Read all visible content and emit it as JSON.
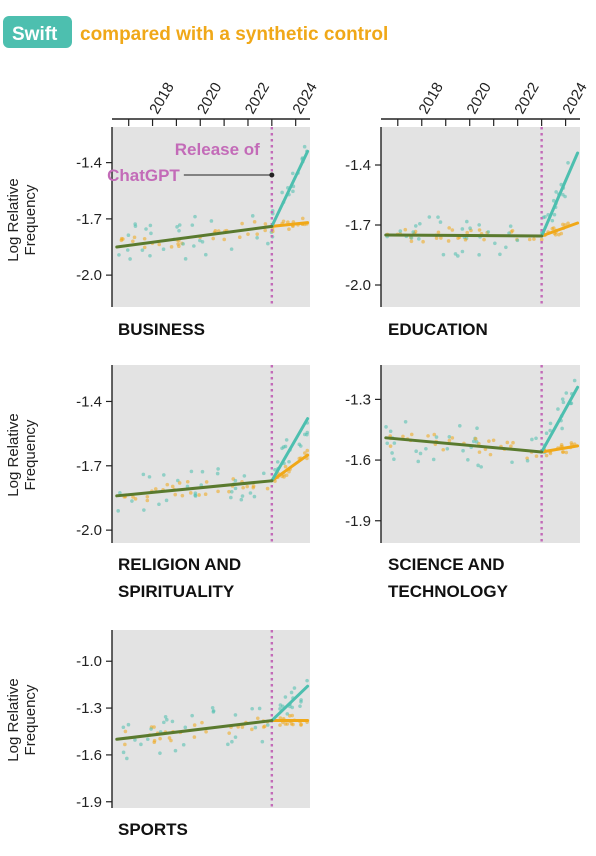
{
  "header": {
    "chip_label": "Swift",
    "rest_label": "compared with a synthetic control"
  },
  "colors": {
    "swift": "#4dbfaf",
    "control": "#f0a818",
    "pre_trend": "#5a7a2e",
    "release_line": "#c36bb8",
    "panel_bg": "#e3e3e3",
    "chip_bg": "#4dbfaf"
  },
  "y_axis_label_lines": [
    "Log Relative",
    "Frequency"
  ],
  "annotation": {
    "lines": [
      "Release of",
      "ChatGPT"
    ],
    "year": 2023.0
  },
  "chart_data": [
    {
      "type": "line",
      "title_lines": [
        "BUSINESS"
      ],
      "x_range": [
        2016.3,
        2024.6
      ],
      "x_ticks": [
        "2018",
        "2020",
        "2022",
        "2024"
      ],
      "ylim": [
        -2.17,
        -1.21
      ],
      "y_ticks": [
        "-1.4",
        "-1.7",
        "-2.0"
      ],
      "show_x_ticks": true,
      "show_annotation": true,
      "pre_trend": {
        "x": [
          2016.5,
          2023.0
        ],
        "y": [
          -1.85,
          -1.74
        ]
      },
      "swift_post": {
        "x": [
          2023.0,
          2024.5
        ],
        "y": [
          -1.74,
          -1.34
        ]
      },
      "control_post": {
        "x": [
          2023.0,
          2024.5
        ],
        "y": [
          -1.74,
          -1.72
        ]
      }
    },
    {
      "type": "line",
      "title_lines": [
        "EDUCATION"
      ],
      "x_range": [
        2016.3,
        2024.6
      ],
      "x_ticks": [
        "2018",
        "2020",
        "2022",
        "2024"
      ],
      "ylim": [
        -2.11,
        -1.21
      ],
      "y_ticks": [
        "-1.4",
        "-1.7",
        "-2.0"
      ],
      "show_x_ticks": true,
      "show_annotation": false,
      "pre_trend": {
        "x": [
          2016.5,
          2023.0
        ],
        "y": [
          -1.75,
          -1.755
        ]
      },
      "swift_post": {
        "x": [
          2023.0,
          2024.5
        ],
        "y": [
          -1.755,
          -1.34
        ]
      },
      "control_post": {
        "x": [
          2023.0,
          2024.5
        ],
        "y": [
          -1.755,
          -1.69
        ]
      }
    },
    {
      "type": "line",
      "title_lines": [
        "RELIGION AND",
        "SPIRITUALITY"
      ],
      "x_range": [
        2016.3,
        2024.6
      ],
      "x_ticks": [],
      "ylim": [
        -2.06,
        -1.23
      ],
      "y_ticks": [
        "-1.4",
        "-1.7",
        "-2.0"
      ],
      "show_x_ticks": false,
      "show_annotation": false,
      "pre_trend": {
        "x": [
          2016.5,
          2023.0
        ],
        "y": [
          -1.84,
          -1.77
        ]
      },
      "swift_post": {
        "x": [
          2023.0,
          2024.5
        ],
        "y": [
          -1.77,
          -1.48
        ]
      },
      "control_post": {
        "x": [
          2023.0,
          2024.5
        ],
        "y": [
          -1.77,
          -1.65
        ]
      }
    },
    {
      "type": "line",
      "title_lines": [
        "SCIENCE AND",
        "TECHNOLOGY"
      ],
      "x_range": [
        2016.3,
        2024.6
      ],
      "x_ticks": [],
      "ylim": [
        -2.01,
        -1.13
      ],
      "y_ticks": [
        "-1.3",
        "-1.6",
        "-1.9"
      ],
      "show_x_ticks": false,
      "show_annotation": false,
      "pre_trend": {
        "x": [
          2016.5,
          2023.0
        ],
        "y": [
          -1.49,
          -1.56
        ]
      },
      "swift_post": {
        "x": [
          2023.0,
          2024.5
        ],
        "y": [
          -1.56,
          -1.24
        ]
      },
      "control_post": {
        "x": [
          2023.0,
          2024.5
        ],
        "y": [
          -1.56,
          -1.53
        ]
      }
    },
    {
      "type": "line",
      "title_lines": [
        "SPORTS"
      ],
      "x_range": [
        2016.3,
        2024.6
      ],
      "x_ticks": [],
      "ylim": [
        -1.94,
        -0.8
      ],
      "y_ticks": [
        "-1.0",
        "-1.3",
        "-1.6",
        "-1.9"
      ],
      "show_x_ticks": false,
      "show_annotation": false,
      "pre_trend": {
        "x": [
          2016.5,
          2023.0
        ],
        "y": [
          -1.5,
          -1.38
        ]
      },
      "swift_post": {
        "x": [
          2023.0,
          2024.5
        ],
        "y": [
          -1.38,
          -1.16
        ]
      },
      "control_post": {
        "x": [
          2023.0,
          2024.5
        ],
        "y": [
          -1.38,
          -1.38
        ]
      }
    }
  ]
}
